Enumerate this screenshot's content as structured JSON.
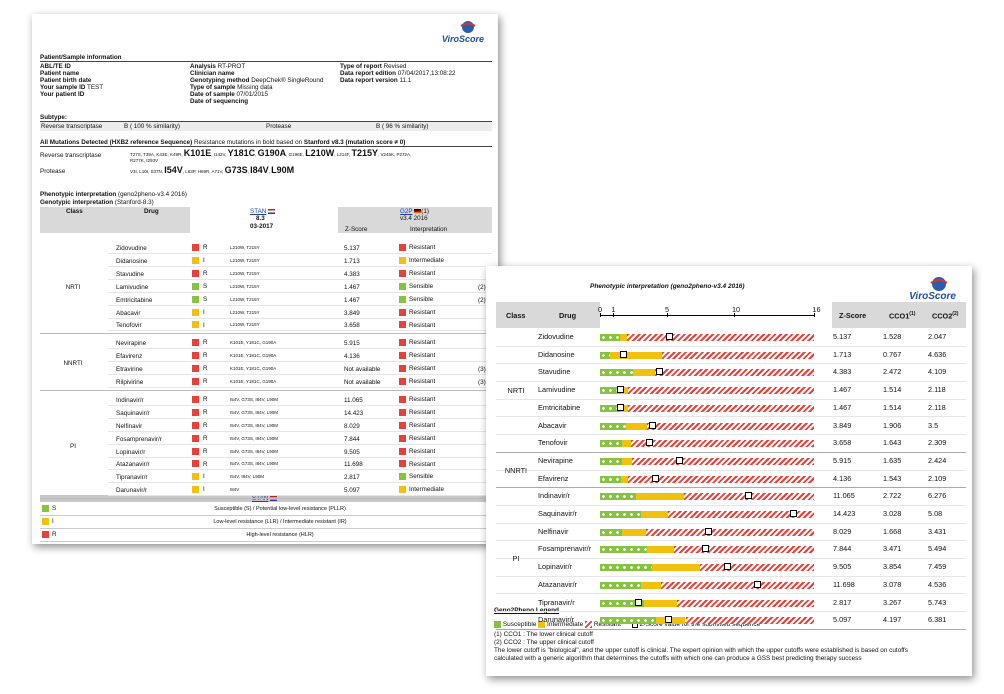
{
  "page1": {
    "logo": "ViroScore",
    "patient_section_title": "Patient/Sample information",
    "patient_left": [
      {
        "label": "ABL/TE ID",
        "value": ""
      },
      {
        "label": "Patient name",
        "value": ""
      },
      {
        "label": "Patient birth date",
        "value": ""
      },
      {
        "label": "Your sample ID",
        "value": "TEST"
      },
      {
        "label": "Your patient ID",
        "value": ""
      }
    ],
    "patient_mid": [
      {
        "label": "Analysis",
        "value": "RT-PROT"
      },
      {
        "label": "Clinician name",
        "value": ""
      },
      {
        "label": "Genotyping method",
        "value": "DeepChek® SingleRound"
      },
      {
        "label": "Type of sample",
        "value": "Missing data"
      },
      {
        "label": "Date of sample",
        "value": "07/01/2015"
      },
      {
        "label": "Date of sequencing",
        "value": ""
      }
    ],
    "patient_right": [
      {
        "label": "Type of report",
        "value": "Revised"
      },
      {
        "label": "Data report edition",
        "value": "07/04/2017,13:08:22"
      },
      {
        "label": "Data report version",
        "value": "11.1"
      }
    ],
    "subtype_label": "Subtype:",
    "rt_label": "Reverse transcriptase",
    "rt_value": "B ( 100 % similarity)",
    "pr_label": "Protease",
    "pr_value": "B ( 96 % similarity)",
    "mut_title_bold": "All Mutations Detected (HXB2 reference Sequence)",
    "mut_title_rest": " Resistance mutations in bold based on ",
    "mut_title_bold2": "Stanford v8.3 (mutation score ≠ 0)",
    "rt_mut_label": "Reverse transcriptase",
    "rt_mut_line1": [
      {
        "t": "T27S, T39A, K43E, K49R, ",
        "b": false
      },
      {
        "t": "K101E",
        "b": true
      },
      {
        "t": ", I142V, ",
        "b": false
      },
      {
        "t": "Y181C",
        "b": true
      },
      {
        "t": ", ",
        "b": false
      },
      {
        "t": "G190A",
        "b": true
      },
      {
        "t": ", G196E, ",
        "b": false
      },
      {
        "t": "L210W",
        "b": true
      },
      {
        "t": ", L214F, ",
        "b": false
      },
      {
        "t": "T215Y",
        "b": true
      },
      {
        "t": ", V245K, P272A,",
        "b": false
      }
    ],
    "rt_mut_line2": "R277K, I293V",
    "pr_mut_label": "Protease",
    "pr_mut_line": [
      {
        "t": "V3I, L10I, S37N, ",
        "b": false
      },
      {
        "t": "I54V",
        "b": true
      },
      {
        "t": ", L63P, H69R, A71V, ",
        "b": false
      },
      {
        "t": "G73S",
        "b": true
      },
      {
        "t": ", ",
        "b": false
      },
      {
        "t": "I84V",
        "b": true
      },
      {
        "t": ", ",
        "b": false
      },
      {
        "t": "L90M",
        "b": true
      }
    ],
    "pheno_title": "Phenotypic interpretation",
    "pheno_sub": "(geno2pheno-v3.4 2016)",
    "geno_title": "Genotypic interpretation",
    "geno_sub": "(Stanford-8.3)",
    "head_class": "Class",
    "head_drug": "Drug",
    "head_stan": "STAN",
    "head_stan_ver": "8.3",
    "head_stan_date": "03-2017",
    "head_g2p": "G2P",
    "head_g2p_num": "(1)",
    "head_g2p_ver": "v3.4 2016",
    "head_z": "Z-Score",
    "head_interp": "Interpretation",
    "classes": [
      {
        "name": "NRTI",
        "rows": [
          {
            "drug": "Zidovudine",
            "code": "R",
            "muts": "L210W, T215Y",
            "z": "5.137",
            "interp": "Resistant",
            "note": ""
          },
          {
            "drug": "Didanosine",
            "code": "I",
            "muts": "L210W, T215Y",
            "z": "1.713",
            "interp": "Intermediate",
            "note": ""
          },
          {
            "drug": "Stavudine",
            "code": "R",
            "muts": "L210W, T215Y",
            "z": "4.383",
            "interp": "Resistant",
            "note": ""
          },
          {
            "drug": "Lamivudine",
            "code": "S",
            "muts": "L210W, T215Y",
            "z": "1.467",
            "interp": "Sensible",
            "note": "(2)"
          },
          {
            "drug": "Emtricitabine",
            "code": "S",
            "muts": "L210W, T215Y",
            "z": "1.467",
            "interp": "Sensible",
            "note": "(2)"
          },
          {
            "drug": "Abacavir",
            "code": "I",
            "muts": "L210W, T215Y",
            "z": "3.849",
            "interp": "Resistant",
            "note": ""
          },
          {
            "drug": "Tenofovir",
            "code": "I",
            "muts": "L210W, T215Y",
            "z": "3.658",
            "interp": "Resistant",
            "note": ""
          }
        ]
      },
      {
        "name": "NNRTI",
        "rows": [
          {
            "drug": "Nevirapine",
            "code": "R",
            "muts": "K101E, Y181C, G190A",
            "z": "5.915",
            "interp": "Resistant",
            "note": ""
          },
          {
            "drug": "Efavirenz",
            "code": "R",
            "muts": "K101E, Y181C, G190A",
            "z": "4.136",
            "interp": "Resistant",
            "note": ""
          },
          {
            "drug": "Etravirine",
            "code": "R",
            "muts": "K101E, Y181C, G190A",
            "z": "Not available",
            "interp": "Resistant",
            "note": "(3)"
          },
          {
            "drug": "Rilpivirine",
            "code": "R",
            "muts": "K101E, Y181C, G190A",
            "z": "Not available",
            "interp": "Resistant",
            "note": "(3)"
          }
        ]
      },
      {
        "name": "PI",
        "rows": [
          {
            "drug": "Indinavir/r",
            "code": "R",
            "muts": "I54V, G73S, I84V, L90M",
            "z": "11.065",
            "interp": "Resistant",
            "note": ""
          },
          {
            "drug": "Saquinavir/r",
            "code": "R",
            "muts": "I54V, G73S, I84V, L90M",
            "z": "14.423",
            "interp": "Resistant",
            "note": ""
          },
          {
            "drug": "Nelfinavir",
            "code": "R",
            "muts": "I54V, G73S, I84V, L90M",
            "z": "8.029",
            "interp": "Resistant",
            "note": ""
          },
          {
            "drug": "Fosamprenavir/r",
            "code": "R",
            "muts": "I54V, G73S, I84V, L90M",
            "z": "7.844",
            "interp": "Resistant",
            "note": ""
          },
          {
            "drug": "Lopinavir/r",
            "code": "R",
            "muts": "I54V, G73S, I84V, L90M",
            "z": "9.505",
            "interp": "Resistant",
            "note": ""
          },
          {
            "drug": "Atazanavir/r",
            "code": "R",
            "muts": "I54V, G73S, I84V, L90M",
            "z": "11.698",
            "interp": "Resistant",
            "note": ""
          },
          {
            "drug": "Tipranavir/r",
            "code": "I",
            "muts": "I54V, I84V, L90M",
            "z": "2.817",
            "interp": "Sensible",
            "note": ""
          },
          {
            "drug": "Darunavir/r",
            "code": "I",
            "muts": "I84V",
            "z": "5.097",
            "interp": "Intermediate",
            "note": ""
          }
        ]
      }
    ],
    "legend_head": "STAN",
    "legend": [
      {
        "code": "S",
        "text": "Susceptible (S) / Potential low-level resistance (PLLR)"
      },
      {
        "code": "I",
        "text": "Low-level resistance (LLR) / Intermediate resistant (IR)"
      },
      {
        "code": "R",
        "text": "High-level resistance (HLR)"
      }
    ]
  },
  "page2": {
    "title": "Phenotypic interpretation (geno2pheno-v3.4 2016)",
    "logo": "ViroScore",
    "head_class": "Class",
    "head_drug": "Drug",
    "axis_ticks": [
      {
        "label": "0",
        "v": 0
      },
      {
        "label": "1",
        "v": 1
      },
      {
        "label": "5",
        "v": 5
      },
      {
        "label": "10",
        "v": 10
      },
      {
        "label": "16",
        "v": 16
      }
    ],
    "head_z": "Z-Score",
    "head_cco1": "CCO1",
    "head_cco1_sup": "(1)",
    "head_cco2": "CCO2",
    "head_cco2_sup": "(2)",
    "classes": [
      {
        "name": "NRTI",
        "rows": [
          {
            "drug": "Zidovudine",
            "z": "5.137",
            "cco1": "1.528",
            "cco2": "2.047"
          },
          {
            "drug": "Didanosine",
            "z": "1.713",
            "cco1": "0.767",
            "cco2": "4.636"
          },
          {
            "drug": "Stavudine",
            "z": "4.383",
            "cco1": "2.472",
            "cco2": "4.109"
          },
          {
            "drug": "Lamivudine",
            "z": "1.467",
            "cco1": "1.514",
            "cco2": "2.118"
          },
          {
            "drug": "Emtricitabine",
            "z": "1.467",
            "cco1": "1.514",
            "cco2": "2.118"
          },
          {
            "drug": "Abacavir",
            "z": "3.849",
            "cco1": "1.906",
            "cco2": "3.5"
          },
          {
            "drug": "Tenofovir",
            "z": "3.658",
            "cco1": "1.643",
            "cco2": "2.309"
          }
        ]
      },
      {
        "name": "NNRTI",
        "rows": [
          {
            "drug": "Nevirapine",
            "z": "5.915",
            "cco1": "1.635",
            "cco2": "2.424"
          },
          {
            "drug": "Efavirenz",
            "z": "4.136",
            "cco1": "1.543",
            "cco2": "2.109"
          }
        ]
      },
      {
        "name": "PI",
        "rows": [
          {
            "drug": "Indinavir/r",
            "z": "11.065",
            "cco1": "2.722",
            "cco2": "6.276"
          },
          {
            "drug": "Saquinavir/r",
            "z": "14.423",
            "cco1": "3.028",
            "cco2": "5.08"
          },
          {
            "drug": "Nelfinavir",
            "z": "8.029",
            "cco1": "1.668",
            "cco2": "3.431"
          },
          {
            "drug": "Fosamprenavir/r",
            "z": "7.844",
            "cco1": "3.471",
            "cco2": "5.494"
          },
          {
            "drug": "Lopinavir/r",
            "z": "9.505",
            "cco1": "3.854",
            "cco2": "7.459"
          },
          {
            "drug": "Atazanavir/r",
            "z": "11.698",
            "cco1": "3.078",
            "cco2": "4.536"
          },
          {
            "drug": "Tipranavir/r",
            "z": "2.817",
            "cco1": "3.267",
            "cco2": "5.743"
          },
          {
            "drug": "Darunavir/r",
            "z": "5.097",
            "cco1": "4.197",
            "cco2": "6.381"
          }
        ]
      }
    ],
    "legend_title": "Geno2Pheno Legend",
    "legend_items": [
      "Susceptible",
      "Intermediate",
      "Resistant",
      "Z-Score value for the submitted sequence"
    ],
    "notes": [
      "(1) CCO1 : The lower clinical cutoff",
      "(2) CCO2 : The upper clinical cutoff",
      "The lower cutoff is \"biological\", and the upper cutoff is clinical. The expert opinion with which the upper cutoffs were established is based on cutoffs",
      "calculated with a generic algorithm that determines the cutoffs with which one can produce a GSS best predicting therapy success"
    ]
  },
  "colors": {
    "resistant": "#e8413a",
    "intermediate": "#f2c10e",
    "susceptible": "#86c440",
    "brand": "#1e4f9a"
  }
}
